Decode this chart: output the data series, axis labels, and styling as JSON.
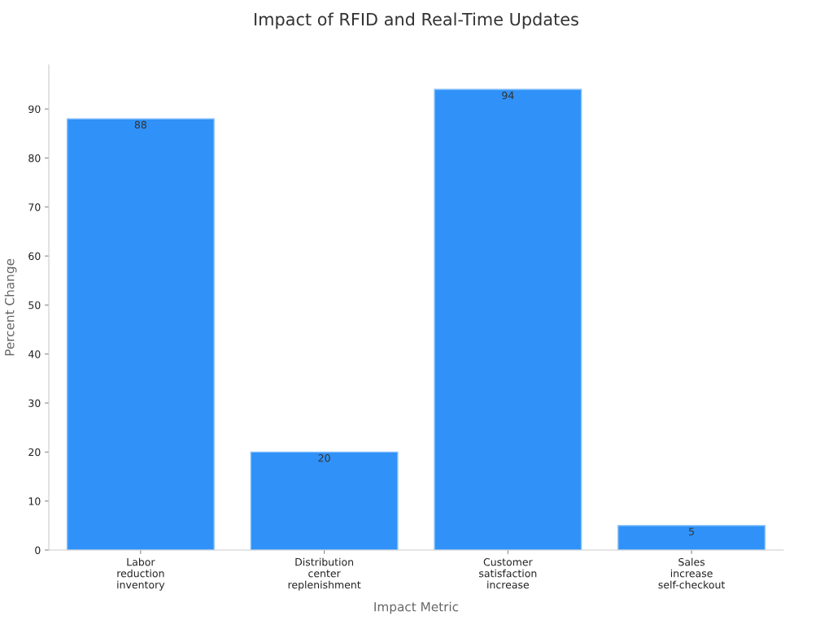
{
  "chart_data": {
    "type": "bar",
    "title": "Impact of RFID and Real-Time Updates",
    "xlabel": "Impact Metric",
    "ylabel": "Percent Change",
    "categories": [
      "Labor\nreduction\ninventory",
      "Distribution\ncenter\nreplenishment",
      "Customer\nsatisfaction\nincrease",
      "Sales\nincrease\nself-checkout"
    ],
    "values": [
      88,
      20,
      94,
      5
    ],
    "color": "#3092f8",
    "ylim": [
      0,
      99
    ],
    "yticks": [
      0,
      10,
      20,
      30,
      40,
      50,
      60,
      70,
      80,
      90
    ],
    "grid": false,
    "legend": false,
    "data_labels": true
  }
}
